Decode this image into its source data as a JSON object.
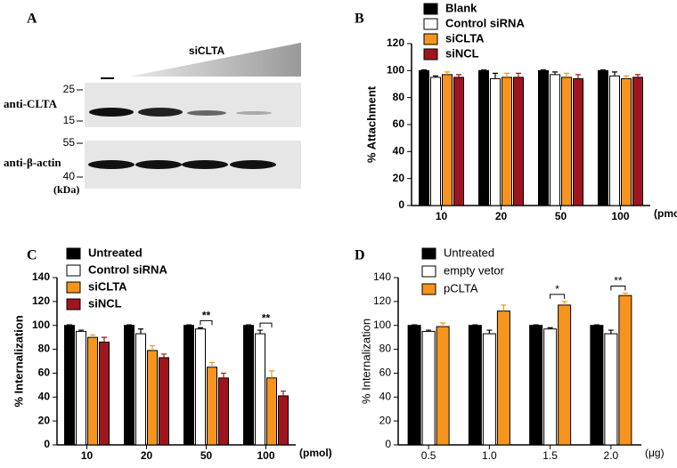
{
  "blot": {
    "label": "A",
    "treatment": "siCLTA",
    "rows": [
      {
        "antibody": "anti-CLTA",
        "markers": [
          "25",
          "15"
        ]
      },
      {
        "antibody": "anti-β-actin",
        "markers": [
          "55",
          "40"
        ]
      }
    ],
    "unit": "(kDa)"
  },
  "chart_data": [
    {
      "type": "bar",
      "label": "B",
      "ylabel": "% Attachment",
      "xlabel": "(pmol)",
      "categories": [
        "10",
        "20",
        "50",
        "100"
      ],
      "series": [
        {
          "name": "Blank",
          "color": "#000000",
          "values": [
            100,
            100,
            100,
            100
          ],
          "errors": [
            0.5,
            0.5,
            0.5,
            0.5
          ]
        },
        {
          "name": "Control siRNA",
          "color": "#ffffff",
          "values": [
            95,
            94,
            97,
            96
          ],
          "errors": [
            1,
            4,
            2,
            3
          ]
        },
        {
          "name": "siCLTA",
          "color": "#f7941d",
          "values": [
            97,
            95,
            95,
            94
          ],
          "errors": [
            2,
            3,
            3,
            2
          ]
        },
        {
          "name": "siNCL",
          "color": "#a0141e",
          "values": [
            95,
            95,
            94,
            95
          ],
          "errors": [
            2,
            3,
            3,
            2
          ]
        }
      ],
      "ylim": [
        0,
        120
      ],
      "yticks": [
        0,
        20,
        40,
        60,
        80,
        100,
        120
      ],
      "annotations": []
    },
    {
      "type": "bar",
      "label": "C",
      "ylabel": "% Internalization",
      "xlabel": "(pmol)",
      "categories": [
        "10",
        "20",
        "50",
        "100"
      ],
      "series": [
        {
          "name": "Untreated",
          "color": "#000000",
          "values": [
            100,
            100,
            100,
            100
          ],
          "errors": [
            0.5,
            0.5,
            0.5,
            0.5
          ]
        },
        {
          "name": "Control siRNA",
          "color": "#ffffff",
          "values": [
            95,
            93,
            97,
            93
          ],
          "errors": [
            1,
            4,
            1,
            3
          ]
        },
        {
          "name": "siCLTA",
          "color": "#f7941d",
          "values": [
            90,
            79,
            65,
            56
          ],
          "errors": [
            2,
            4,
            4,
            6
          ]
        },
        {
          "name": "siNCL",
          "color": "#a0141e",
          "values": [
            86,
            73,
            56,
            41
          ],
          "errors": [
            4,
            3,
            4,
            4
          ]
        }
      ],
      "ylim": [
        0,
        140
      ],
      "yticks": [
        0,
        20,
        40,
        60,
        80,
        100,
        120,
        140
      ],
      "annotations": [
        {
          "category": "50",
          "text": "**"
        },
        {
          "category": "100",
          "text": "**"
        }
      ]
    },
    {
      "type": "bar",
      "label": "D",
      "ylabel": "% Internalization",
      "xlabel": "(μg)",
      "categories": [
        "0.5",
        "1.0",
        "1.5",
        "2.0"
      ],
      "series": [
        {
          "name": "Untreated",
          "color": "#000000",
          "values": [
            100,
            100,
            100,
            100
          ],
          "errors": [
            0.5,
            0.5,
            0.5,
            0.5
          ]
        },
        {
          "name": "empty vetor",
          "color": "#ffffff",
          "values": [
            95,
            93,
            97,
            93
          ],
          "errors": [
            1,
            3,
            1,
            3
          ]
        },
        {
          "name": "pCLTA",
          "color": "#f7941d",
          "values": [
            99,
            112,
            117,
            125
          ],
          "errors": [
            3,
            5,
            3,
            2
          ]
        }
      ],
      "ylim": [
        0,
        140
      ],
      "yticks": [
        0,
        20,
        40,
        60,
        80,
        100,
        120,
        140
      ],
      "annotations": [
        {
          "category": "1.5",
          "text": "*"
        },
        {
          "category": "2.0",
          "text": "**"
        }
      ]
    }
  ]
}
